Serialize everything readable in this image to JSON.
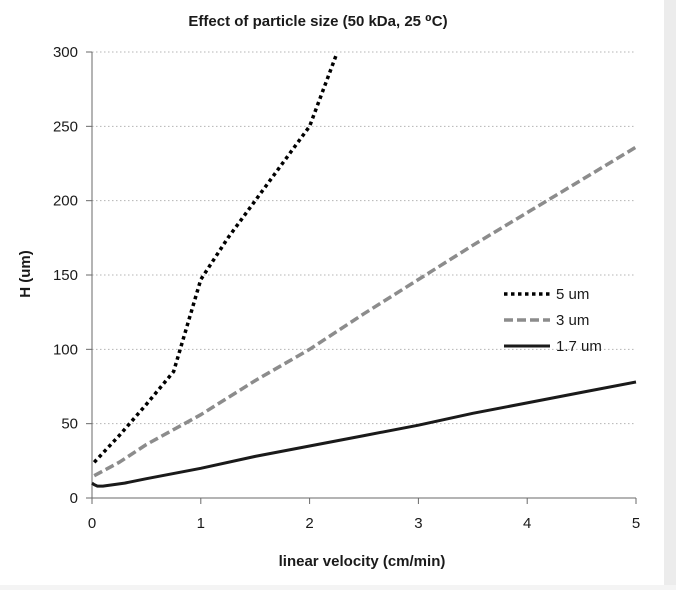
{
  "chart_data": {
    "type": "line",
    "title": "Effect of particle size (50 kDa, 25 ⁰C)",
    "xlabel": "linear velocity (cm/min)",
    "ylabel": "H (um)",
    "xlim": [
      0,
      5
    ],
    "ylim": [
      0,
      300
    ],
    "x_ticks": [
      "0",
      "1",
      "2",
      "3",
      "4",
      "5"
    ],
    "y_ticks": [
      "0",
      "50",
      "100",
      "150",
      "200",
      "250",
      "300"
    ],
    "grid": "horizontal dotted",
    "legend_position": "right",
    "series": [
      {
        "name": "5 um",
        "style": "dotted",
        "color": "#000000",
        "x": [
          0.02,
          0.25,
          0.5,
          0.75,
          1.0,
          1.25,
          1.5,
          1.75,
          2.0,
          2.25
        ],
        "y": [
          24,
          42,
          63,
          85,
          147,
          175,
          200,
          225,
          250,
          299
        ]
      },
      {
        "name": "3 um",
        "style": "dashed",
        "color": "#8c8c8c",
        "x": [
          0.02,
          0.25,
          0.5,
          1.0,
          1.5,
          2.0,
          2.5,
          3.0,
          3.5,
          4.0,
          4.5,
          5.0
        ],
        "y": [
          15,
          24,
          36,
          56,
          79,
          100,
          124,
          147,
          170,
          192,
          214,
          236
        ]
      },
      {
        "name": "1.7 um",
        "style": "solid",
        "color": "#1a1a1a",
        "x": [
          0.0,
          0.02,
          0.05,
          0.1,
          0.2,
          0.3,
          0.5,
          1.0,
          1.5,
          2.0,
          2.5,
          3.0,
          3.5,
          4.0,
          4.5,
          5.0
        ],
        "y": [
          10,
          9,
          8,
          8,
          9,
          10,
          13,
          20,
          28,
          35,
          42,
          49,
          57,
          64,
          71,
          78
        ]
      }
    ]
  }
}
